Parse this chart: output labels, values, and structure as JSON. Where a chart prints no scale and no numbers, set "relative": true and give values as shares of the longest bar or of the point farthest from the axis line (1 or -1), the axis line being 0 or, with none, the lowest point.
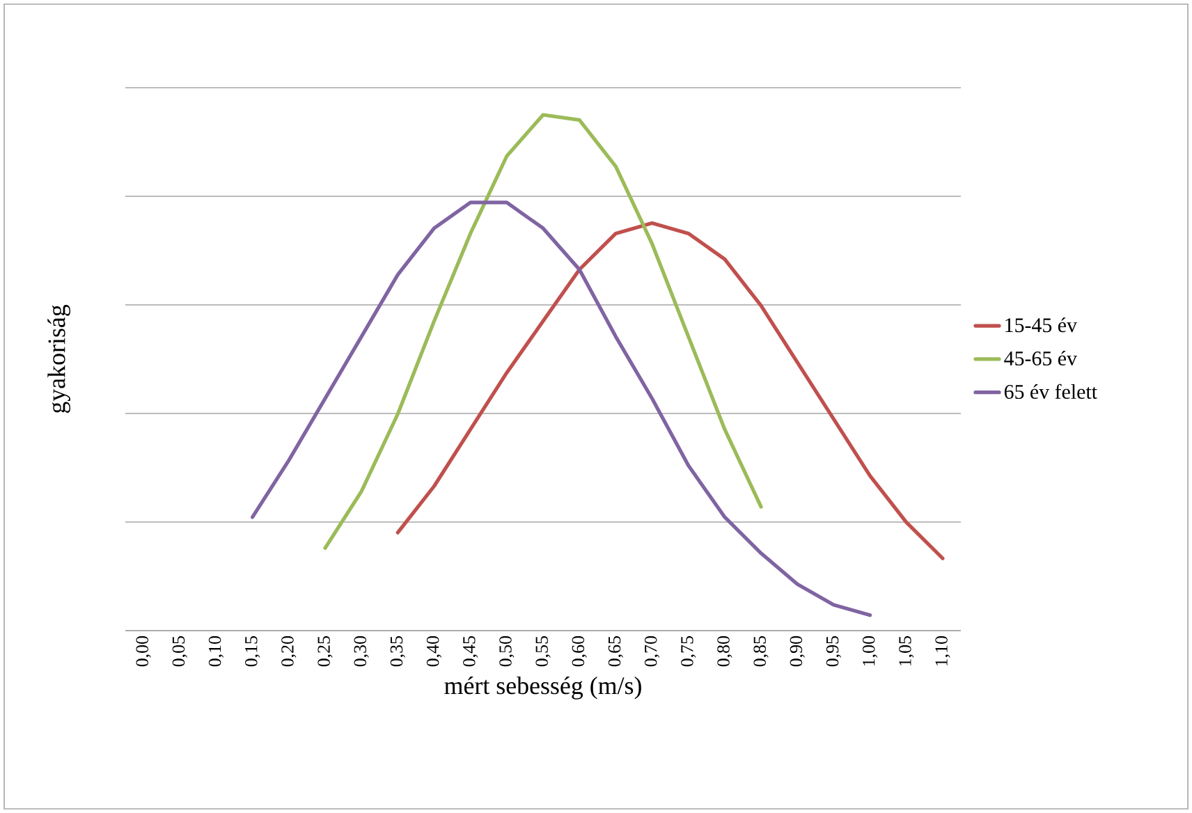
{
  "chart_data": {
    "type": "line",
    "relative": true,
    "xlabel": "mért sebesség (m/s)",
    "ylabel": "gyakoriság",
    "categories": [
      "0,00",
      "0,05",
      "0,10",
      "0,15",
      "0,20",
      "0,25",
      "0,30",
      "0,35",
      "0,40",
      "0,45",
      "0,50",
      "0,55",
      "0,60",
      "0,65",
      "0,70",
      "0,75",
      "0,80",
      "0,85",
      "0,90",
      "0,95",
      "1,00",
      "1,05",
      "1,10"
    ],
    "series": [
      {
        "name": "15-45 év",
        "color": "#c0504d",
        "values": [
          null,
          null,
          null,
          null,
          null,
          null,
          null,
          0.19,
          0.28,
          0.39,
          0.5,
          0.6,
          0.7,
          0.77,
          0.79,
          0.77,
          0.72,
          0.63,
          0.52,
          0.41,
          0.3,
          0.21,
          0.14
        ]
      },
      {
        "name": "45-65 év",
        "color": "#9bbb59",
        "values": [
          null,
          null,
          null,
          null,
          null,
          0.16,
          0.27,
          0.42,
          0.6,
          0.77,
          0.92,
          1,
          0.99,
          0.9,
          0.75,
          0.57,
          0.39,
          0.24,
          null,
          null,
          null,
          null,
          null
        ]
      },
      {
        "name": "65 év felett",
        "color": "#8064a2",
        "values": [
          null,
          null,
          null,
          0.22,
          0.33,
          0.45,
          0.57,
          0.69,
          0.78,
          0.83,
          0.83,
          0.78,
          0.7,
          0.57,
          0.45,
          0.32,
          0.22,
          0.15,
          0.09,
          0.05,
          0.03,
          null,
          null
        ]
      }
    ],
    "grid": "y",
    "legend": "right",
    "marker": "none",
    "line_style": "solid"
  }
}
